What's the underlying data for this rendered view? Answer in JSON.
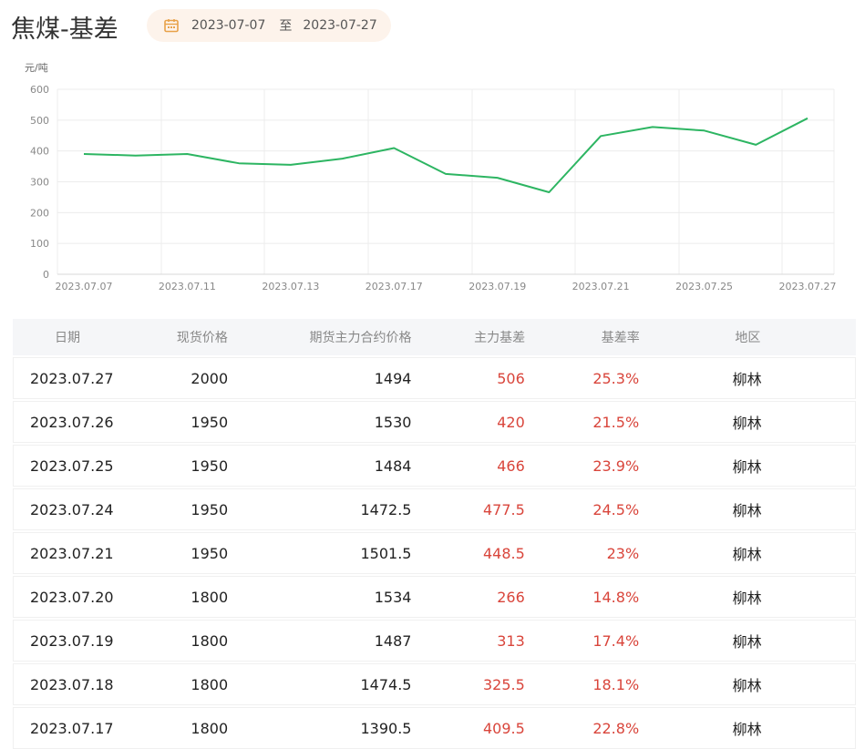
{
  "header": {
    "title": "焦煤-基差",
    "date_start": "2023-07-07",
    "date_sep": "至",
    "date_end": "2023-07-27"
  },
  "colors": {
    "line": "#2db562",
    "accent_red": "#d9453b",
    "calendar_icon": "#e8a24a",
    "date_pill_bg": "#fdf3eb"
  },
  "chart_data": {
    "type": "line",
    "ylabel": "元/吨",
    "ylim": [
      0,
      600
    ],
    "yticks": [
      0,
      100,
      200,
      300,
      400,
      500,
      600
    ],
    "xtick_labels": [
      "2023.07.07",
      "2023.07.11",
      "2023.07.13",
      "2023.07.17",
      "2023.07.19",
      "2023.07.21",
      "2023.07.25",
      "2023.07.27"
    ],
    "x": [
      "2023.07.07",
      "2023.07.10",
      "2023.07.11",
      "2023.07.12",
      "2023.07.13",
      "2023.07.14",
      "2023.07.17",
      "2023.07.18",
      "2023.07.19",
      "2023.07.20",
      "2023.07.21",
      "2023.07.24",
      "2023.07.25",
      "2023.07.26",
      "2023.07.27"
    ],
    "series": [
      {
        "values": [
          390,
          385,
          390,
          360,
          355,
          375,
          409.5,
          325.5,
          313,
          266,
          448.5,
          477.5,
          466,
          420,
          506
        ]
      }
    ],
    "grid": true
  },
  "table": {
    "headers": [
      "日期",
      "现货价格",
      "期货主力合约价格",
      "主力基差",
      "基差率",
      "地区"
    ],
    "rows": [
      [
        "2023.07.27",
        "2000",
        "1494",
        "506",
        "25.3%",
        "柳林"
      ],
      [
        "2023.07.26",
        "1950",
        "1530",
        "420",
        "21.5%",
        "柳林"
      ],
      [
        "2023.07.25",
        "1950",
        "1484",
        "466",
        "23.9%",
        "柳林"
      ],
      [
        "2023.07.24",
        "1950",
        "1472.5",
        "477.5",
        "24.5%",
        "柳林"
      ],
      [
        "2023.07.21",
        "1950",
        "1501.5",
        "448.5",
        "23%",
        "柳林"
      ],
      [
        "2023.07.20",
        "1800",
        "1534",
        "266",
        "14.8%",
        "柳林"
      ],
      [
        "2023.07.19",
        "1800",
        "1487",
        "313",
        "17.4%",
        "柳林"
      ],
      [
        "2023.07.18",
        "1800",
        "1474.5",
        "325.5",
        "18.1%",
        "柳林"
      ],
      [
        "2023.07.17",
        "1800",
        "1390.5",
        "409.5",
        "22.8%",
        "柳林"
      ]
    ]
  }
}
